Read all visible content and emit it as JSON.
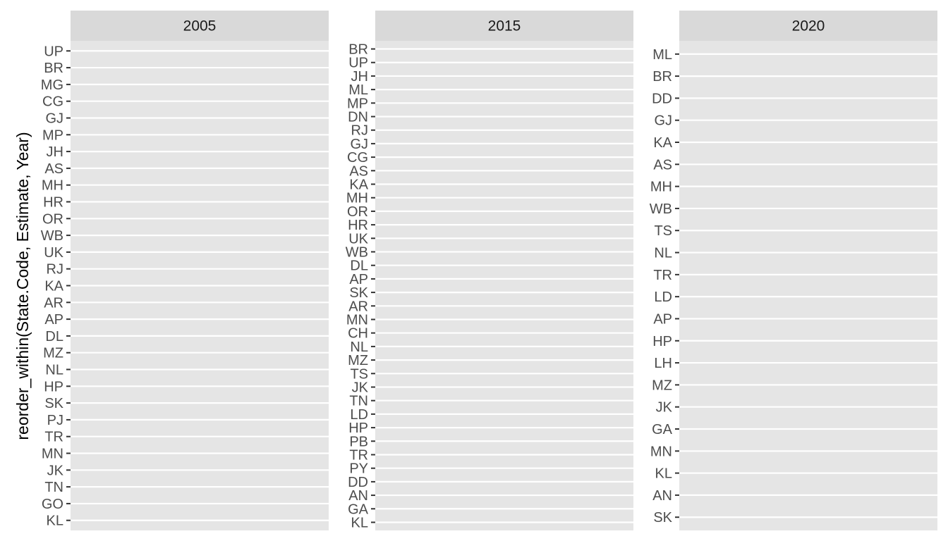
{
  "chart_data": {
    "type": "bar",
    "ylabel": "reorder_within(State.Code, Estimate, Year)",
    "xlabel": "",
    "facets": [
      {
        "label": "2005",
        "categories": [
          "UP",
          "BR",
          "MG",
          "CG",
          "GJ",
          "MP",
          "JH",
          "AS",
          "MH",
          "HR",
          "OR",
          "WB",
          "UK",
          "RJ",
          "KA",
          "AR",
          "AP",
          "DL",
          "MZ",
          "NL",
          "HP",
          "SK",
          "PJ",
          "TR",
          "MN",
          "JK",
          "TN",
          "GO",
          "KL"
        ]
      },
      {
        "label": "2015",
        "categories": [
          "BR",
          "UP",
          "JH",
          "ML",
          "MP",
          "DN",
          "RJ",
          "GJ",
          "CG",
          "AS",
          "KA",
          "MH",
          "OR",
          "HR",
          "UK",
          "WB",
          "DL",
          "AP",
          "SK",
          "AR",
          "MN",
          "CH",
          "NL",
          "MZ",
          "TS",
          "JK",
          "TN",
          "LD",
          "HP",
          "PB",
          "TR",
          "PY",
          "DD",
          "AN",
          "GA",
          "KL"
        ]
      },
      {
        "label": "2020",
        "categories": [
          "ML",
          "BR",
          "DD",
          "GJ",
          "KA",
          "AS",
          "MH",
          "WB",
          "TS",
          "NL",
          "TR",
          "LD",
          "AP",
          "HP",
          "LH",
          "MZ",
          "JK",
          "GA",
          "MN",
          "KL",
          "AN",
          "SK"
        ]
      }
    ],
    "grid": true,
    "colors": {
      "panel_background": "#e5e5e5",
      "strip_background": "#d9d9d9",
      "gridline": "#ffffff",
      "tick": "#333333",
      "tick_label": "#4d4d4d"
    }
  }
}
